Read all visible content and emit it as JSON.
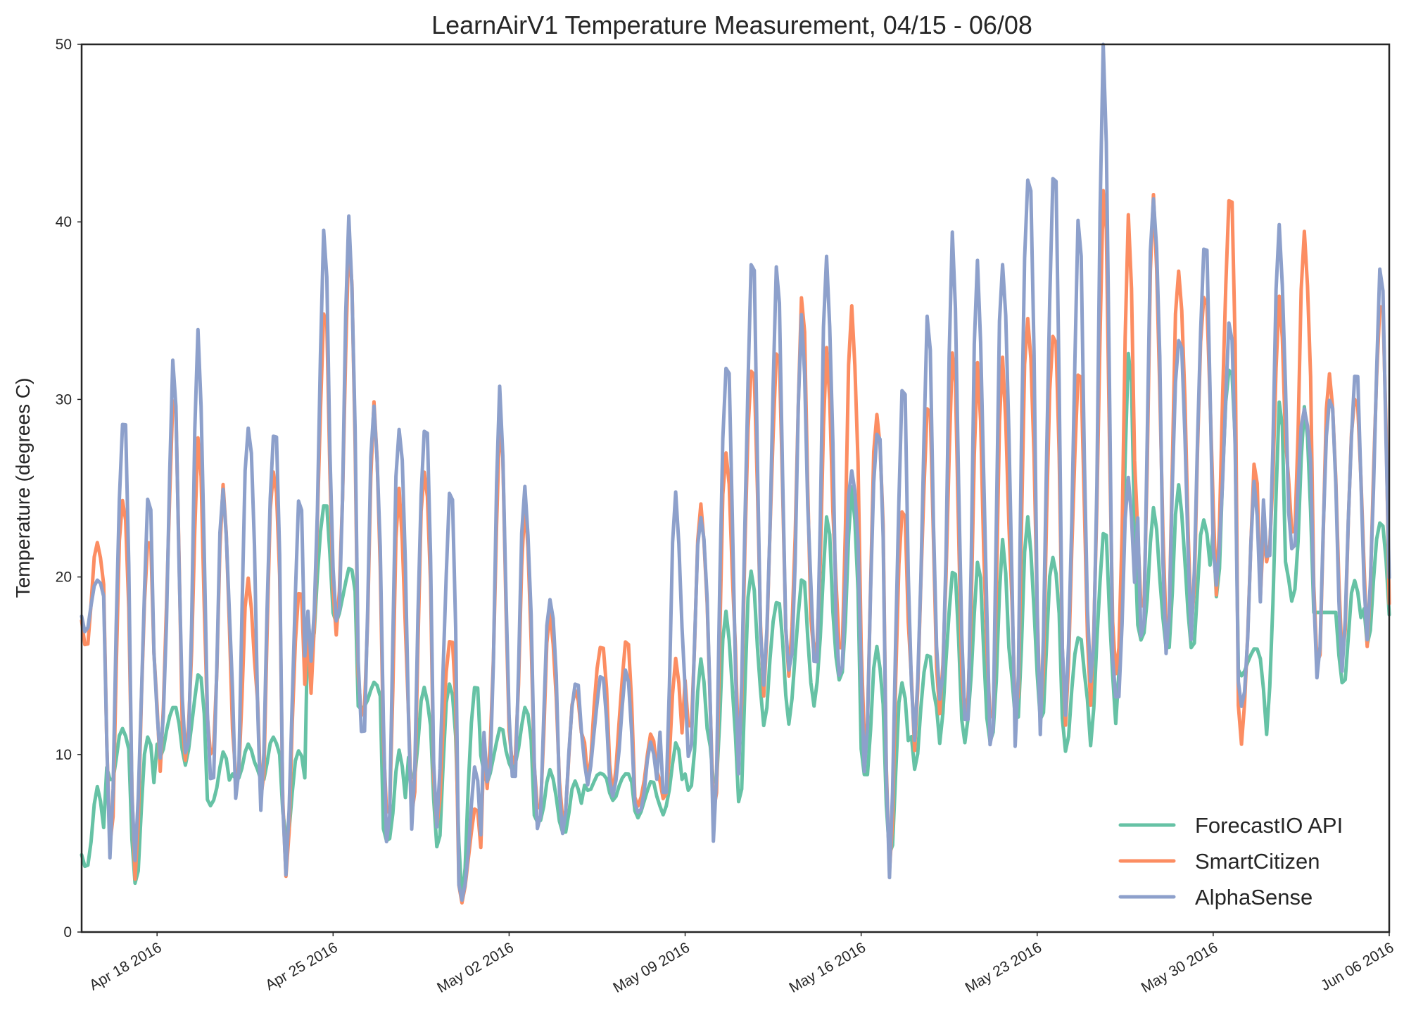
{
  "chart_data": {
    "type": "line",
    "title": "LearnAirV1 Temperature Measurement, 04/15 - 06/08",
    "xlabel": "",
    "ylabel": "Temperature (degrees C)",
    "xlim": [
      "2016-04-15",
      "2016-06-06"
    ],
    "ylim": [
      0,
      50
    ],
    "yticks": [
      0,
      10,
      20,
      30,
      40,
      50
    ],
    "xticks": [
      {
        "date": "2016-04-18",
        "label": "Apr 18 2016"
      },
      {
        "date": "2016-04-25",
        "label": "Apr 25 2016"
      },
      {
        "date": "2016-05-02",
        "label": "May 02 2016"
      },
      {
        "date": "2016-05-09",
        "label": "May 09 2016"
      },
      {
        "date": "2016-05-16",
        "label": "May 16 2016"
      },
      {
        "date": "2016-05-23",
        "label": "May 23 2016"
      },
      {
        "date": "2016-05-30",
        "label": "May 30 2016"
      },
      {
        "date": "2016-06-06",
        "label": "Jun 06 2016"
      }
    ],
    "grid": false,
    "legend": "lower-right",
    "x": [
      "2016-04-15",
      "2016-04-16",
      "2016-04-17",
      "2016-04-18",
      "2016-04-19",
      "2016-04-20",
      "2016-04-21",
      "2016-04-22",
      "2016-04-23",
      "2016-04-24",
      "2016-04-25",
      "2016-04-26",
      "2016-04-27",
      "2016-04-28",
      "2016-04-29",
      "2016-04-30",
      "2016-05-01",
      "2016-05-02",
      "2016-05-03",
      "2016-05-04",
      "2016-05-05",
      "2016-05-06",
      "2016-05-07",
      "2016-05-08",
      "2016-05-09",
      "2016-05-10",
      "2016-05-11",
      "2016-05-12",
      "2016-05-13",
      "2016-05-14",
      "2016-05-15",
      "2016-05-16",
      "2016-05-17",
      "2016-05-18",
      "2016-05-19",
      "2016-05-20",
      "2016-05-21",
      "2016-05-22",
      "2016-05-23",
      "2016-05-24",
      "2016-05-25",
      "2016-05-26",
      "2016-05-27",
      "2016-05-28",
      "2016-05-29",
      "2016-05-30",
      "2016-05-31",
      "2016-06-01",
      "2016-06-02",
      "2016-06-03",
      "2016-06-04",
      "2016-06-05",
      "2016-06-06"
    ],
    "series": [
      {
        "name": "ForecastIO API",
        "color": "#66c2a5",
        "min": [
          3.4,
          8.5,
          3.0,
          10.0,
          9.5,
          7.0,
          8.5,
          8.5,
          5.5,
          16.0,
          17.5,
          12.5,
          4.8,
          8.5,
          5.0,
          2.4,
          8.5,
          9.0,
          6.0,
          5.5,
          8.0,
          7.5,
          6.5,
          6.5,
          7.5,
          8.0,
          7.5,
          12.0,
          12.0,
          12.5,
          13.5,
          8.5,
          4.5,
          9.5,
          11.0,
          10.5,
          10.0,
          11.5,
          12.0,
          10.5,
          11.0,
          11.5,
          16.0,
          15.5,
          16.0,
          19.5,
          14.5,
          11.0,
          18.0,
          18.0,
          14.0,
          16.5,
          17.5
        ],
        "max": [
          8.0,
          11.5,
          11.5,
          12.8,
          14.5,
          10.0,
          10.5,
          11.0,
          10.5,
          24.5,
          20.5,
          14.0,
          10.0,
          13.8,
          14.5,
          14.5,
          11.5,
          12.5,
          9.0,
          8.5,
          9.0,
          9.0,
          8.5,
          10.5,
          15.0,
          18.0,
          21.0,
          19.0,
          20.0,
          23.0,
          24.5,
          16.0,
          14.5,
          16.0,
          20.5,
          20.5,
          21.5,
          23.2,
          21.5,
          17.0,
          22.8,
          32.0,
          23.5,
          25.0,
          23.5,
          32.5,
          16.0,
          29.4,
          29.0,
          18.0,
          20.0,
          23.5,
          19.5
        ]
      },
      {
        "name": "SmartCitizen",
        "color": "#fc8d62",
        "min": [
          16.0,
          5.5,
          4.0,
          9.5,
          9.0,
          9.0,
          8.5,
          8.0,
          4.0,
          14.0,
          16.0,
          11.0,
          6.0,
          7.0,
          6.5,
          1.8,
          7.5,
          8.5,
          6.5,
          6.5,
          9.0,
          8.0,
          7.0,
          7.0,
          11.0,
          7.0,
          11.0,
          14.0,
          14.0,
          14.5,
          15.0,
          11.0,
          4.5,
          11.0,
          12.0,
          11.0,
          11.0,
          12.5,
          13.0,
          12.5,
          12.5,
          13.0,
          17.0,
          17.0,
          18.0,
          20.0,
          10.5,
          20.0,
          21.5,
          15.0,
          16.0,
          17.0,
          16.5
        ],
        "max": [
          22.0,
          25.5,
          23.0,
          30.0,
          27.0,
          24.5,
          20.0,
          27.0,
          20.0,
          35.0,
          38.0,
          29.0,
          25.0,
          27.0,
          17.0,
          7.0,
          28.0,
          23.5,
          18.0,
          14.0,
          16.5,
          16.5,
          11.0,
          15.0,
          24.0,
          28.0,
          33.0,
          33.0,
          35.0,
          32.0,
          35.0,
          30.0,
          25.0,
          30.0,
          32.0,
          31.0,
          32.0,
          35.5,
          35.0,
          32.0,
          41.0,
          39.0,
          41.0,
          38.0,
          37.0,
          42.0,
          26.0,
          35.0,
          39.0,
          32.0,
          31.0,
          36.0,
          30.0
        ]
      },
      {
        "name": "AlphaSense",
        "color": "#8da0cb",
        "min": [
          17.0,
          5.5,
          4.5,
          9.0,
          8.5,
          8.0,
          8.0,
          8.0,
          3.8,
          14.5,
          16.0,
          10.5,
          5.5,
          7.0,
          6.5,
          1.6,
          7.0,
          8.0,
          6.0,
          6.0,
          8.5,
          7.5,
          6.5,
          7.0,
          10.0,
          6.5,
          10.0,
          13.5,
          13.5,
          14.0,
          14.5,
          10.0,
          4.2,
          10.5,
          11.5,
          10.5,
          10.5,
          12.0,
          12.5,
          12.0,
          12.0,
          12.5,
          16.5,
          16.5,
          17.5,
          19.5,
          12.0,
          20.0,
          21.5,
          15.0,
          15.5,
          16.5,
          18.0
        ],
        "max": [
          20.0,
          30.0,
          24.5,
          31.2,
          32.8,
          25.0,
          29.6,
          29.2,
          24.5,
          38.5,
          39.2,
          29.6,
          29.6,
          29.6,
          25.0,
          9.0,
          29.6,
          25.0,
          19.4,
          14.5,
          14.5,
          14.5,
          10.5,
          24.6,
          24.0,
          33.5,
          38.3,
          36.7,
          33.7,
          37.7,
          26.5,
          29.3,
          31.3,
          34.0,
          38.0,
          37.3,
          38.7,
          44.5,
          43.5,
          39.4,
          48.2,
          25.3,
          42.2,
          34.5,
          39.3,
          34.0,
          24.7,
          39.3,
          29.7,
          31.0,
          32.0,
          37.0,
          30.0
        ]
      }
    ]
  }
}
